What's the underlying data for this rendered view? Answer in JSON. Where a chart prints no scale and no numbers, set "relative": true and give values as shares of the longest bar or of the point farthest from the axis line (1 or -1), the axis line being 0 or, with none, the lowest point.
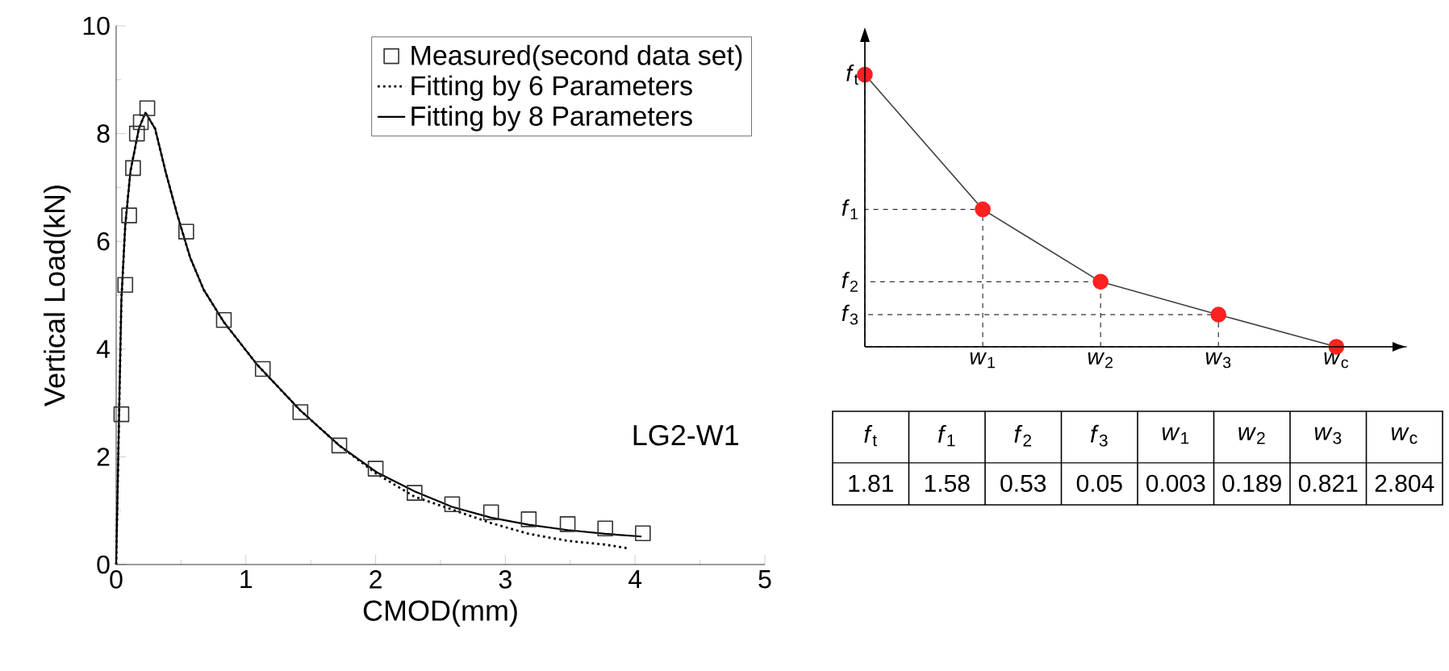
{
  "chart_data": [
    {
      "type": "line",
      "xlabel": "CMOD(mm)",
      "ylabel": "Vertical Load(kN)",
      "xlim": [
        0,
        5
      ],
      "ylim": [
        0,
        10
      ],
      "xticks": [
        0,
        1,
        2,
        3,
        4,
        5
      ],
      "yticks": [
        0,
        2,
        4,
        6,
        8,
        10
      ],
      "legend": "top right",
      "annotations": [
        "LG2-W1"
      ],
      "series": [
        {
          "name": "Measured(second data set)",
          "type": "scatter",
          "marker": "square",
          "color": "#333333",
          "x": [
            0.04,
            0.07,
            0.1,
            0.13,
            0.16,
            0.19,
            0.24,
            0.54,
            0.83,
            1.13,
            1.42,
            1.72,
            2.0,
            2.3,
            2.59,
            2.89,
            3.18,
            3.48,
            3.77,
            4.06
          ],
          "values": [
            2.79,
            5.19,
            6.48,
            7.36,
            8.0,
            8.21,
            8.47,
            6.18,
            4.54,
            3.63,
            2.83,
            2.21,
            1.78,
            1.33,
            1.12,
            0.97,
            0.84,
            0.75,
            0.67,
            0.58
          ]
        },
        {
          "name": "Fitting by 6 Parameters",
          "type": "line",
          "marker": "none",
          "line_style": "dotted",
          "color": "#000000",
          "x": [
            0,
            0.02,
            0.04,
            0.07,
            0.11,
            0.175,
            0.225,
            0.3,
            0.38,
            0.47,
            0.57,
            0.675,
            0.83,
            1.09,
            1.42,
            1.72,
            2.01,
            2.3,
            2.59,
            2.89,
            3.18,
            3.48,
            3.77,
            3.95
          ],
          "values": [
            0,
            2.5,
            4.9,
            6.3,
            7.3,
            8.09,
            8.39,
            8.09,
            7.3,
            6.5,
            5.7,
            5.1,
            4.5,
            3.7,
            2.86,
            2.21,
            1.68,
            1.26,
            1.02,
            0.77,
            0.57,
            0.44,
            0.37,
            0.3
          ]
        },
        {
          "name": "Fitting by 8 Parameters",
          "type": "line",
          "marker": "none",
          "line_style": "solid",
          "color": "#000000",
          "x": [
            0,
            0.02,
            0.04,
            0.07,
            0.11,
            0.175,
            0.225,
            0.3,
            0.38,
            0.47,
            0.57,
            0.675,
            0.83,
            1.09,
            1.42,
            1.72,
            2.01,
            2.3,
            2.59,
            2.89,
            3.18,
            3.48,
            3.77,
            4.05
          ],
          "values": [
            0,
            2.5,
            4.9,
            6.3,
            7.3,
            8.09,
            8.39,
            8.09,
            7.3,
            6.5,
            5.7,
            5.1,
            4.5,
            3.7,
            2.86,
            2.21,
            1.71,
            1.36,
            1.07,
            0.87,
            0.74,
            0.64,
            0.57,
            0.52
          ]
        }
      ]
    },
    {
      "type": "line",
      "relative": true,
      "categories": [
        null,
        "*w*$_{1}$",
        "*w*$_{2}$",
        "*w*$_{3}$",
        "*w*$_{c}$"
      ],
      "annotations": [
        "*f*$_{t}$",
        "*f*$_{1}$",
        "*f*$_{2}$",
        "*f*$_{3}$"
      ],
      "series": [
        {
          "color": "#ff2020",
          "marker": "circle",
          "values": [
            1.0,
            0.505,
            0.239,
            0.118,
            0
          ]
        }
      ]
    },
    {
      "type": "other",
      "data_labels": true,
      "categories": [
        "*f*$_{t}$",
        "*f*$_{1}$",
        "*f*$_{2}$",
        "*f*$_{3}$",
        "*w*$_{1}$",
        "*w*$_{2}$",
        "*w*$_{3}$",
        "*w*$_{c}$"
      ],
      "values": [
        1.81,
        1.58,
        0.53,
        0.05,
        0.003,
        0.189,
        0.821,
        2.804
      ]
    }
  ]
}
